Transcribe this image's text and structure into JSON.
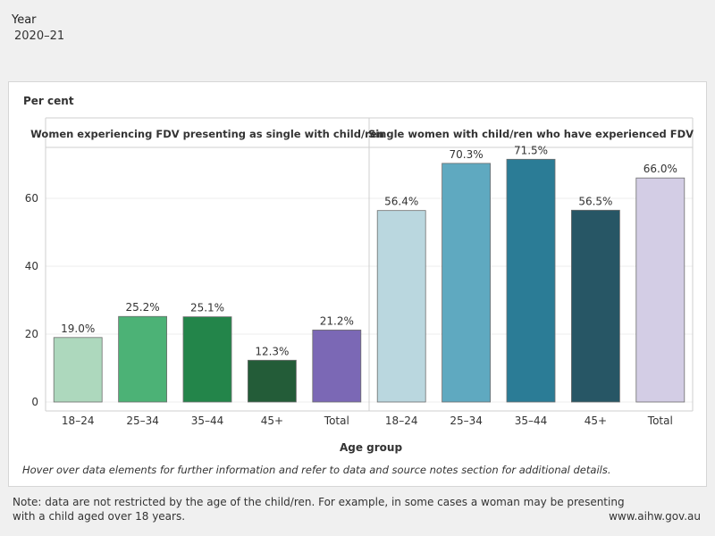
{
  "filter": {
    "label": "Year",
    "value": "2020–21"
  },
  "chart_data": {
    "type": "bar",
    "ylabel": "Per cent",
    "xlabel": "Age group",
    "ylim": [
      0,
      75
    ],
    "yticks": [
      0,
      20,
      40,
      60
    ],
    "grid": true,
    "panels": [
      {
        "title": "Women experiencing FDV presenting as single with child/ren",
        "categories": [
          "18–24",
          "25–34",
          "35–44",
          "45+",
          "Total"
        ],
        "values": [
          19.0,
          25.2,
          25.1,
          12.3,
          21.2
        ],
        "labels": [
          "19.0%",
          "25.2%",
          "25.1%",
          "12.3%",
          "21.2%"
        ],
        "colors": [
          "#add8bd",
          "#4cb276",
          "#23854a",
          "#235c38",
          "#7b68b5"
        ]
      },
      {
        "title": "Single women with child/ren who have experienced FDV",
        "categories": [
          "18–24",
          "25–34",
          "35–44",
          "45+",
          "Total"
        ],
        "values": [
          56.4,
          70.3,
          71.5,
          56.5,
          66.0
        ],
        "labels": [
          "56.4%",
          "70.3%",
          "71.5%",
          "56.5%",
          "66.0%"
        ],
        "colors": [
          "#bad7df",
          "#5fa9c0",
          "#2b7c96",
          "#275665",
          "#d3cde5"
        ]
      }
    ]
  },
  "footer": {
    "hint": "Hover over data elements for further information and refer to data and source notes section for additional details.",
    "note_line1": "Note: data are not restricted by the age of the child/ren. For example, in some cases a woman may be presenting",
    "note_line2": "with a child aged over 18 years.",
    "site": "www.aihw.gov.au"
  }
}
